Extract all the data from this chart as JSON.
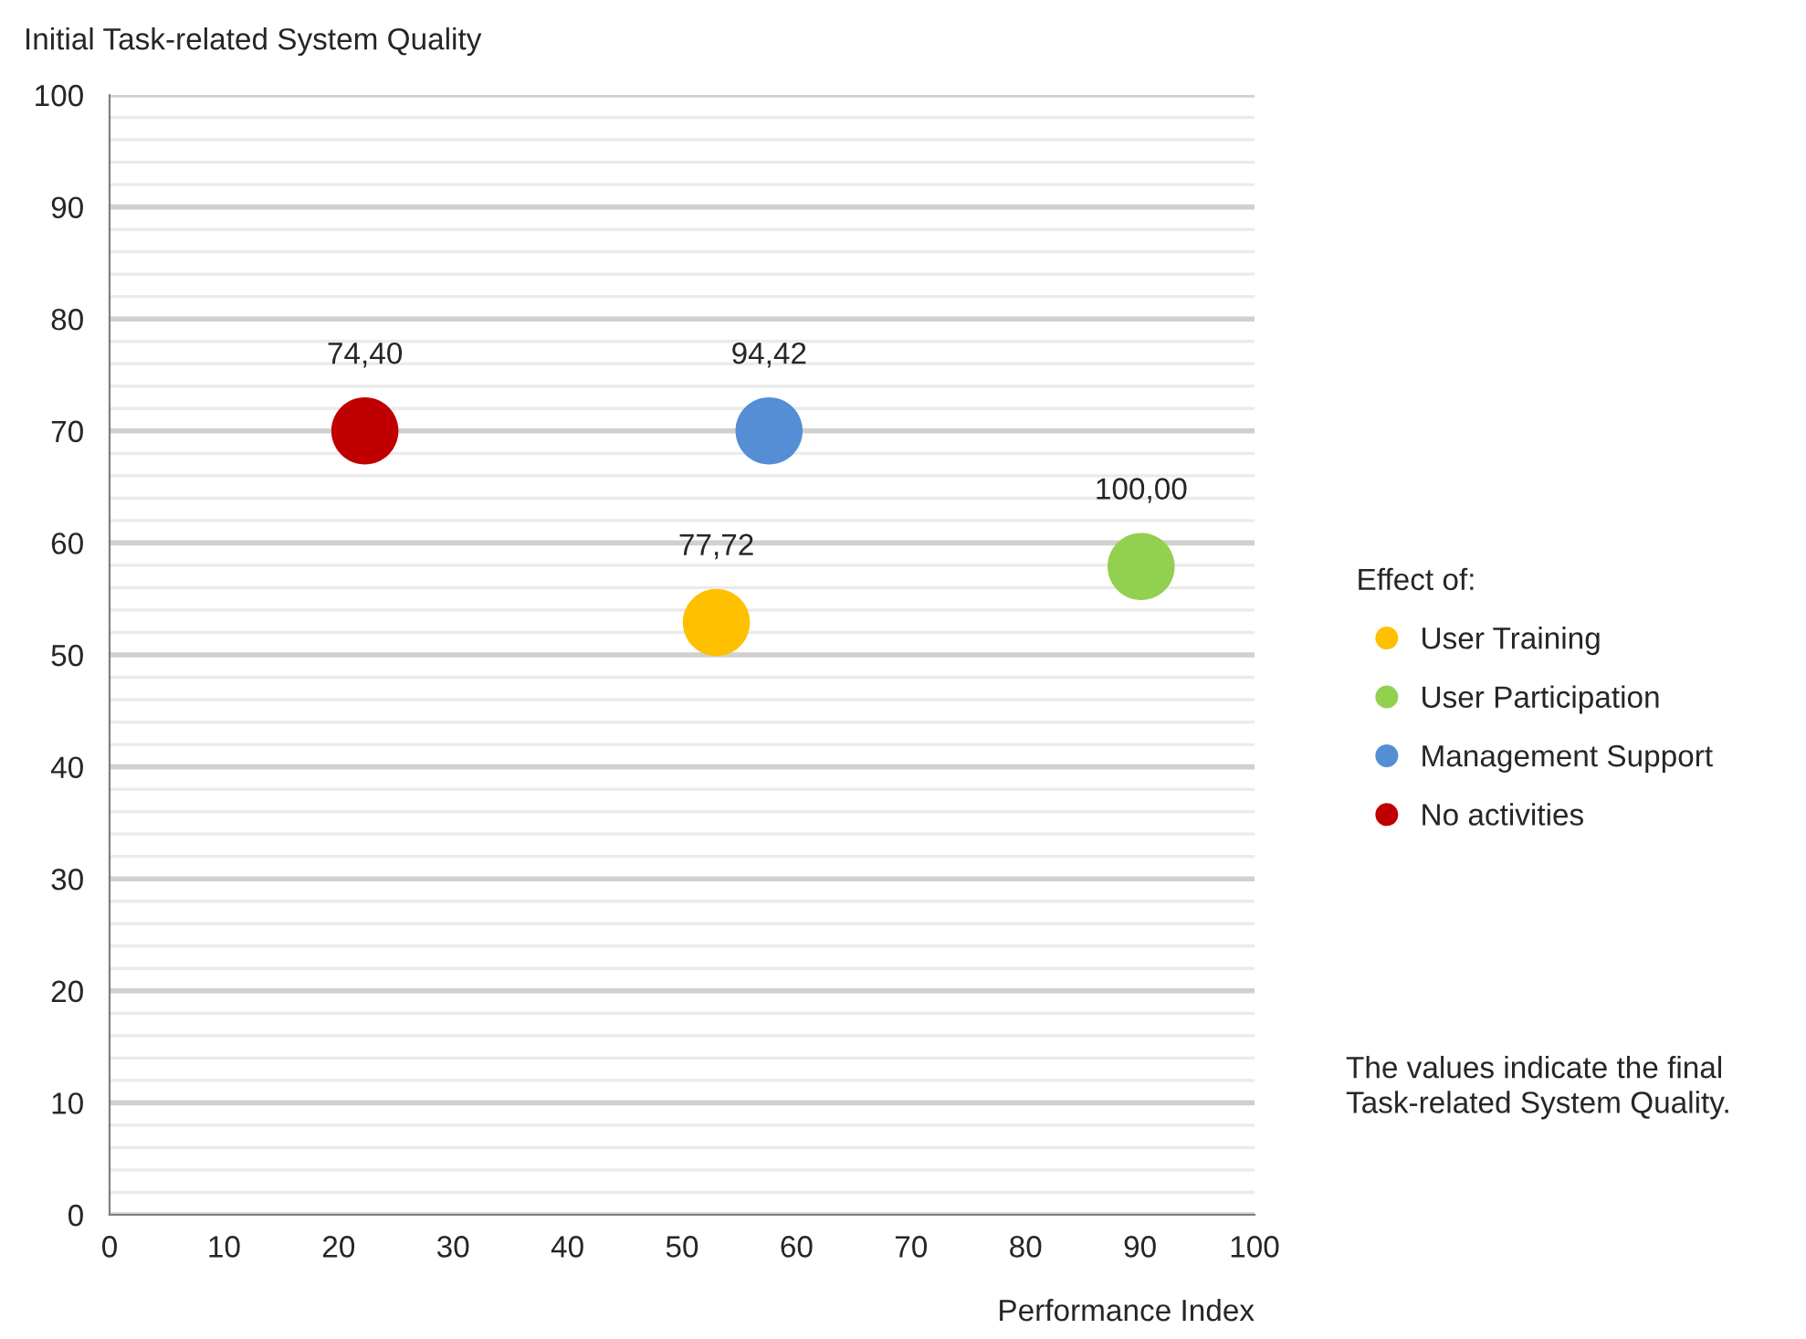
{
  "chart_data": {
    "type": "scatter",
    "xlabel": "Performance Index",
    "ylabel": "Initial Task-related System Quality",
    "legend_title": "Effect of:",
    "series": [
      {
        "name": "User Training",
        "color": "#ffc000",
        "x": [
          53.0
        ],
        "values": [
          52.9
        ]
      },
      {
        "name": "User Participation",
        "color": "#92d050",
        "x": [
          90.1
        ],
        "values": [
          57.9
        ]
      },
      {
        "name": "Management Support",
        "color": "#558ed5",
        "x": [
          57.6
        ],
        "values": [
          70.0
        ]
      },
      {
        "name": "No activities",
        "color": "#c00000",
        "x": [
          22.3
        ],
        "values": [
          70.0
        ]
      }
    ],
    "xlim": [
      0,
      100
    ],
    "xticks": [
      0,
      10,
      20,
      30,
      40,
      50,
      60,
      70,
      80,
      90,
      100
    ],
    "ylim": [
      0,
      100
    ],
    "yticks": [
      0,
      10,
      20,
      30,
      40,
      50,
      60,
      70,
      80,
      90,
      100
    ],
    "grid": "y",
    "legend": "right",
    "marker": "circle",
    "annotations": [
      {
        "text": "77,72",
        "x": 53.0,
        "y": 52.9
      },
      {
        "text": "100,00",
        "x": 90.1,
        "y": 57.9
      },
      {
        "text": "94,42",
        "x": 57.6,
        "y": 70.0
      },
      {
        "text": "74,40",
        "x": 22.3,
        "y": 70.0
      },
      "The values indicate the final\nTask-related System Quality."
    ]
  }
}
